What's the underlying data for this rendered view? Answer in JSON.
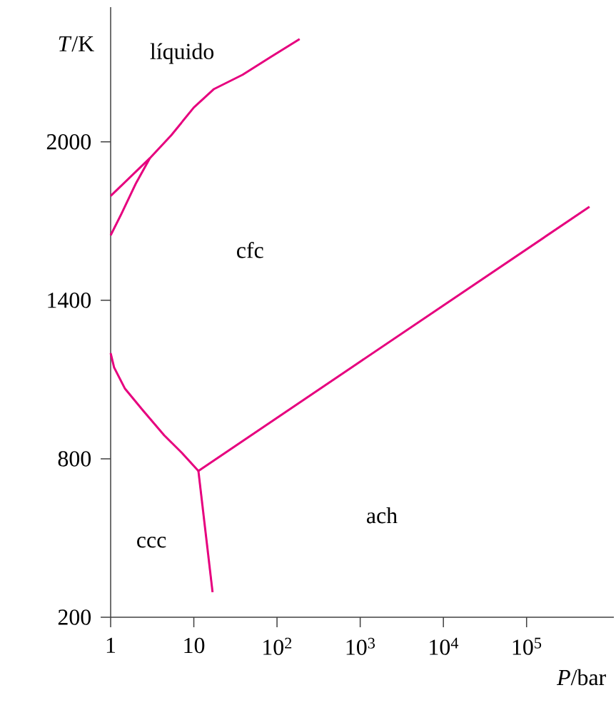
{
  "chart_data": {
    "type": "line",
    "xlabel": "*P*/bar",
    "ylabel": "*T*/K",
    "log": "x",
    "xlim": [
      1,
      1120000
    ],
    "ylim": [
      200,
      2510
    ],
    "xticks": [
      1,
      10,
      {
        "value": 100,
        "label": "10$^{2}$"
      },
      {
        "value": 1000,
        "label": "10$^{3}$"
      },
      {
        "value": 10000,
        "label": "10$^{4}$"
      },
      {
        "value": 100000,
        "label": "10$^{5}$"
      }
    ],
    "yticks": [
      200,
      800,
      1400,
      2000
    ],
    "series": [
      {
        "color": "#e6007e",
        "x": [
          1,
          2.96,
          5.36,
          10,
          17.5,
          38.6,
          85,
          187
        ],
        "values": [
          1795,
          1938,
          2025,
          2130,
          2200,
          2254,
          2322,
          2389
        ]
      },
      {
        "color": "#e6007e",
        "x": [
          1,
          1.345,
          2.0,
          2.96
        ],
        "values": [
          1646,
          1727,
          1841,
          1938
        ]
      },
      {
        "color": "#e6007e",
        "x": [
          1,
          1.1,
          1.49,
          2.43,
          4.4,
          7.2,
          11.35
        ],
        "values": [
          1200,
          1146,
          1065,
          984,
          889,
          822,
          754
        ]
      },
      {
        "color": "#e6007e",
        "x": [
          11.35,
          570000
        ],
        "values": [
          754,
          1754
        ]
      },
      {
        "color": "#e6007e",
        "x": [
          11.35,
          16.8
        ],
        "values": [
          754,
          295
        ]
      }
    ],
    "annotations": [
      "líquido",
      "cfc",
      "ccc",
      "ach"
    ]
  }
}
